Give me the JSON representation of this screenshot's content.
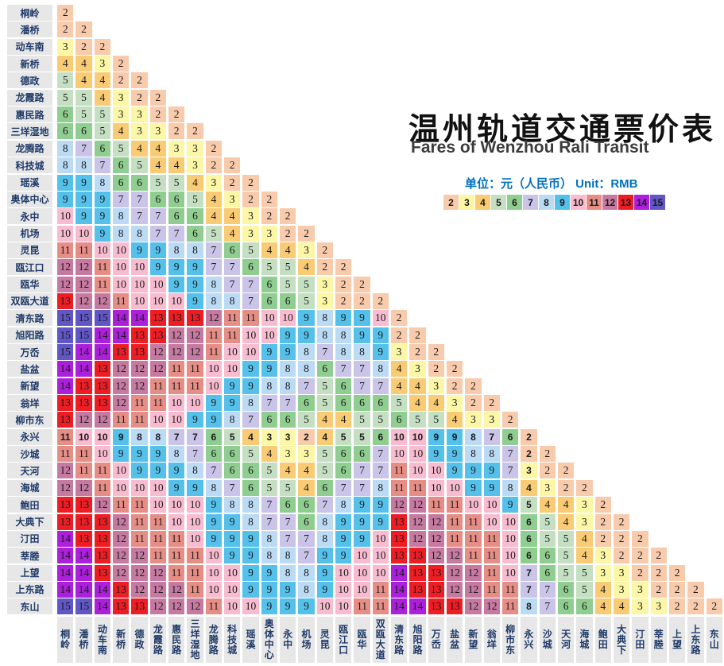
{
  "chart_data": {
    "type": "heatmap",
    "title_zh": "温州轨道交通票价表",
    "title_en": "Fares of Wenzhou Rali Transit",
    "unit_label": "单位：元（人民币）  Unit：RMB",
    "legend_values": [
      2,
      3,
      4,
      5,
      6,
      7,
      8,
      9,
      10,
      11,
      12,
      13,
      14,
      15
    ],
    "legend_colors": {
      "2": "#F8CBAD",
      "3": "#FBF7A6",
      "4": "#F9CB74",
      "5": "#C5DFC3",
      "6": "#90CD90",
      "7": "#C9C4E8",
      "8": "#BBDAF4",
      "9": "#55C1EB",
      "10": "#F8BCD0",
      "11": "#E68E86",
      "12": "#C77AA1",
      "13": "#EE1D24",
      "14": "#AC1FDB",
      "15": "#6156C6"
    },
    "theme": {
      "label_bg": "#E7E7E7",
      "label_text": "#1F3A68",
      "cell_text": "#1A1A1A",
      "title_color": "#111111",
      "subtitle_color": "#3C3C3C",
      "legend_title_color": "#0070C0"
    },
    "stations": [
      "桐岭",
      "潘桥",
      "动车南",
      "新桥",
      "德政",
      "龙霞路",
      "惠民路",
      "三垟湿地",
      "龙腾路",
      "科技城",
      "瑶溪",
      "奥体中心",
      "永中",
      "机场",
      "灵昆",
      "瓯江口",
      "瓯华",
      "双瓯大道",
      "清东路",
      "旭阳路",
      "万岙",
      "盐盆",
      "新望",
      "翁垟",
      "柳市东",
      "永兴",
      "沙城",
      "天河",
      "海城",
      "鲍田",
      "大典下",
      "汀田",
      "莘塍",
      "上望",
      "上东路",
      "东山"
    ],
    "highlight_station": "永兴",
    "highlight_index": 25,
    "fares": [
      [
        2
      ],
      [
        2,
        2
      ],
      [
        3,
        2,
        2
      ],
      [
        4,
        4,
        3,
        2
      ],
      [
        5,
        4,
        4,
        2,
        2
      ],
      [
        5,
        5,
        4,
        3,
        2,
        2
      ],
      [
        6,
        5,
        5,
        3,
        3,
        2,
        2
      ],
      [
        6,
        6,
        5,
        4,
        3,
        3,
        2,
        2
      ],
      [
        8,
        7,
        6,
        5,
        4,
        4,
        3,
        3,
        2
      ],
      [
        8,
        8,
        7,
        6,
        5,
        4,
        4,
        3,
        2,
        2
      ],
      [
        9,
        9,
        8,
        6,
        6,
        5,
        5,
        4,
        3,
        2,
        2
      ],
      [
        9,
        9,
        9,
        7,
        7,
        6,
        6,
        5,
        4,
        3,
        2,
        2
      ],
      [
        10,
        9,
        9,
        8,
        7,
        7,
        6,
        6,
        4,
        4,
        3,
        2,
        2
      ],
      [
        10,
        10,
        9,
        8,
        8,
        7,
        7,
        6,
        5,
        4,
        3,
        3,
        2,
        2
      ],
      [
        11,
        11,
        10,
        10,
        9,
        9,
        8,
        8,
        7,
        6,
        5,
        4,
        4,
        3,
        2
      ],
      [
        12,
        12,
        11,
        10,
        10,
        9,
        9,
        9,
        7,
        7,
        6,
        5,
        5,
        4,
        2,
        2
      ],
      [
        12,
        12,
        11,
        10,
        10,
        10,
        9,
        9,
        8,
        7,
        7,
        6,
        5,
        5,
        3,
        2,
        2
      ],
      [
        13,
        12,
        12,
        11,
        10,
        10,
        10,
        9,
        8,
        8,
        7,
        6,
        6,
        5,
        3,
        2,
        2,
        2
      ],
      [
        15,
        15,
        15,
        14,
        14,
        13,
        13,
        13,
        12,
        11,
        11,
        10,
        10,
        9,
        8,
        9,
        9,
        10,
        2
      ],
      [
        15,
        15,
        14,
        14,
        13,
        13,
        12,
        12,
        11,
        11,
        10,
        10,
        9,
        9,
        8,
        8,
        9,
        9,
        2,
        2
      ],
      [
        15,
        14,
        14,
        13,
        13,
        12,
        12,
        12,
        11,
        10,
        10,
        9,
        9,
        8,
        7,
        8,
        8,
        9,
        3,
        2,
        2
      ],
      [
        14,
        14,
        13,
        12,
        12,
        12,
        11,
        11,
        10,
        10,
        9,
        9,
        8,
        8,
        6,
        7,
        7,
        8,
        4,
        3,
        2,
        2
      ],
      [
        14,
        13,
        13,
        12,
        12,
        11,
        11,
        11,
        10,
        9,
        9,
        8,
        8,
        7,
        5,
        6,
        7,
        7,
        4,
        4,
        3,
        2,
        2
      ],
      [
        13,
        13,
        13,
        12,
        11,
        11,
        10,
        10,
        9,
        9,
        8,
        7,
        7,
        6,
        5,
        6,
        6,
        6,
        5,
        4,
        4,
        3,
        2,
        2
      ],
      [
        13,
        12,
        12,
        11,
        11,
        10,
        10,
        9,
        9,
        8,
        7,
        6,
        6,
        5,
        4,
        4,
        5,
        5,
        6,
        5,
        5,
        4,
        3,
        3,
        2
      ],
      [
        11,
        10,
        10,
        9,
        8,
        8,
        7,
        7,
        6,
        5,
        4,
        3,
        3,
        2,
        4,
        5,
        5,
        6,
        10,
        10,
        9,
        9,
        8,
        7,
        6,
        2
      ],
      [
        11,
        11,
        10,
        9,
        9,
        9,
        8,
        7,
        6,
        6,
        5,
        4,
        3,
        3,
        5,
        6,
        6,
        7,
        10,
        10,
        9,
        9,
        8,
        8,
        7,
        2,
        2
      ],
      [
        12,
        11,
        11,
        10,
        9,
        9,
        9,
        8,
        7,
        6,
        6,
        5,
        4,
        4,
        5,
        6,
        7,
        7,
        11,
        10,
        10,
        9,
        9,
        9,
        7,
        3,
        2,
        2
      ],
      [
        12,
        12,
        11,
        10,
        10,
        10,
        9,
        9,
        8,
        7,
        6,
        5,
        5,
        4,
        6,
        7,
        7,
        8,
        11,
        11,
        10,
        10,
        9,
        9,
        8,
        4,
        3,
        2,
        2
      ],
      [
        13,
        13,
        12,
        11,
        11,
        10,
        10,
        10,
        9,
        8,
        8,
        7,
        6,
        6,
        7,
        8,
        9,
        9,
        12,
        12,
        11,
        11,
        10,
        10,
        9,
        5,
        4,
        4,
        3,
        2
      ],
      [
        13,
        13,
        13,
        12,
        11,
        11,
        10,
        10,
        9,
        9,
        8,
        7,
        7,
        6,
        8,
        9,
        9,
        9,
        13,
        12,
        12,
        11,
        11,
        10,
        10,
        6,
        5,
        4,
        3,
        2,
        2
      ],
      [
        14,
        13,
        13,
        12,
        11,
        11,
        11,
        10,
        9,
        9,
        9,
        8,
        7,
        7,
        8,
        9,
        9,
        10,
        13,
        12,
        12,
        11,
        11,
        11,
        10,
        6,
        5,
        5,
        4,
        2,
        2,
        2
      ],
      [
        14,
        14,
        13,
        12,
        12,
        11,
        11,
        11,
        10,
        9,
        9,
        8,
        8,
        7,
        9,
        9,
        10,
        10,
        13,
        13,
        12,
        12,
        11,
        11,
        10,
        6,
        6,
        5,
        4,
        3,
        2,
        2,
        2
      ],
      [
        14,
        14,
        13,
        12,
        12,
        12,
        11,
        11,
        10,
        10,
        9,
        9,
        8,
        8,
        9,
        10,
        10,
        10,
        14,
        13,
        13,
        12,
        12,
        11,
        10,
        7,
        6,
        5,
        5,
        3,
        3,
        2,
        2,
        2
      ],
      [
        14,
        14,
        14,
        13,
        12,
        12,
        12,
        11,
        10,
        10,
        9,
        9,
        9,
        8,
        9,
        10,
        10,
        11,
        14,
        13,
        13,
        12,
        12,
        11,
        11,
        7,
        7,
        6,
        5,
        4,
        3,
        3,
        2,
        2,
        2
      ],
      [
        15,
        15,
        14,
        13,
        13,
        12,
        12,
        12,
        11,
        10,
        10,
        9,
        9,
        9,
        10,
        10,
        11,
        11,
        14,
        14,
        13,
        13,
        12,
        12,
        11,
        8,
        7,
        6,
        6,
        4,
        4,
        3,
        3,
        2,
        2,
        2
      ]
    ]
  }
}
